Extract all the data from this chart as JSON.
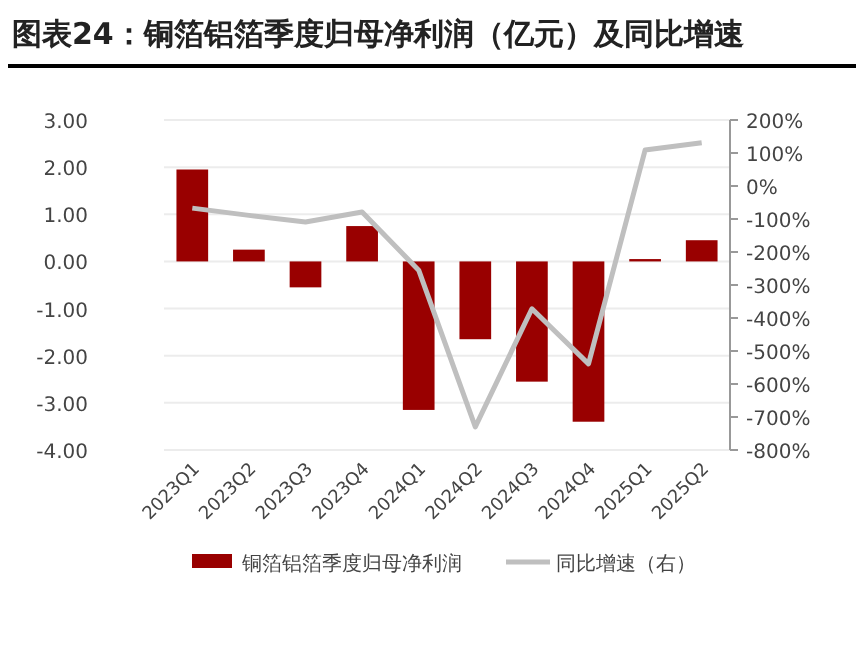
{
  "chart_data": {
    "type": "bar",
    "title": "图表24：铜箔铝箔季度归母净利润（亿元）及同比增速",
    "categories": [
      "2023Q1",
      "2023Q2",
      "2023Q3",
      "2023Q4",
      "2024Q1",
      "2024Q2",
      "2024Q3",
      "2024Q4",
      "2025Q1",
      "2025Q2"
    ],
    "series": [
      {
        "name": "铜箔铝箔季度归母净利润",
        "color": "#990000",
        "values": [
          1.95,
          0.25,
          -0.55,
          0.75,
          -3.15,
          -1.65,
          -2.55,
          -3.4,
          0.05,
          0.45
        ]
      },
      {
        "name": "同比增速（右）",
        "type": "line",
        "axis": "y2",
        "color": "#bfbfbf",
        "values": [
          -67,
          -89,
          -109,
          -79,
          -255,
          -730,
          -372,
          -539,
          109,
          131
        ]
      }
    ],
    "ylim": [
      -4,
      3
    ],
    "yticks": [
      {
        "value": -4,
        "label": "-4.00"
      },
      {
        "value": -3,
        "label": "-3.00"
      },
      {
        "value": -2,
        "label": "-2.00"
      },
      {
        "value": -1,
        "label": "-1.00"
      },
      {
        "value": 0,
        "label": "0.00"
      },
      {
        "value": 1,
        "label": "1.00"
      },
      {
        "value": 2,
        "label": "2.00"
      },
      {
        "value": 3,
        "label": "3.00"
      }
    ],
    "y2lim": [
      -800,
      200
    ],
    "y2ticks": [
      {
        "value": -800,
        "label": "-800%"
      },
      {
        "value": -700,
        "label": "-700%"
      },
      {
        "value": -600,
        "label": "-600%"
      },
      {
        "value": -500,
        "label": "-500%"
      },
      {
        "value": -400,
        "label": "-400%"
      },
      {
        "value": -300,
        "label": "-300%"
      },
      {
        "value": -200,
        "label": "-200%"
      },
      {
        "value": -100,
        "label": "-100%"
      },
      {
        "value": 0,
        "label": "0%"
      },
      {
        "value": 100,
        "label": "100%"
      },
      {
        "value": 200,
        "label": "200%"
      }
    ],
    "grid": "y",
    "legend": "bottom",
    "marker": "none",
    "line_style": "solid"
  }
}
